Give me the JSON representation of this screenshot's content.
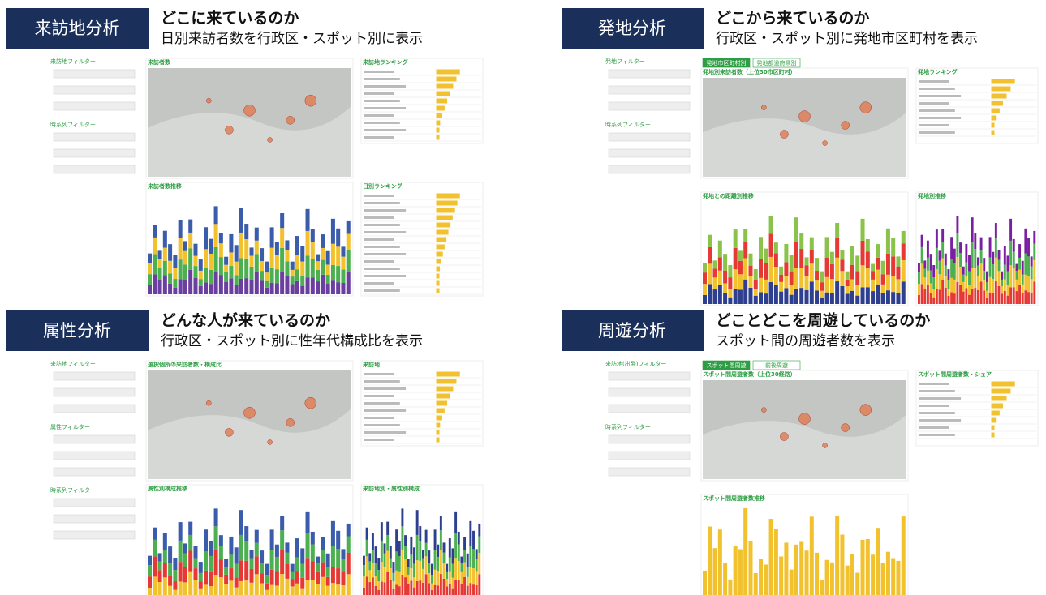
{
  "panels": [
    {
      "label": "来訪地分析",
      "title": "どこに来ているのか",
      "subtitle": "日別来訪者数を行政区・スポット別に表示",
      "filters": [
        "来訪地フィルター",
        "時系列フィルター"
      ],
      "widgets": [
        {
          "title": "来訪者数",
          "kind": "map"
        },
        {
          "title": "来訪地ランキング",
          "kind": "table"
        },
        {
          "title": "来訪者数推移",
          "kind": "stack",
          "colors": [
            "#6a3fa0",
            "#4caf50",
            "#f2c12e",
            "#3b5bab"
          ]
        },
        {
          "title": "日別ランキング",
          "kind": "table"
        }
      ]
    },
    {
      "label": "発地分析",
      "title": "どこから来ているのか",
      "subtitle": "行政区・スポット別に発地市区町村を表示",
      "filters": [
        "発地フィルター",
        "時系列フィルター"
      ],
      "tabs": [
        "発地市区町村別",
        "発地都道府県別"
      ],
      "widgets": [
        {
          "title": "発地別来訪者数（上位30市区町村）",
          "kind": "map"
        },
        {
          "title": "発地ランキング",
          "kind": "table"
        },
        {
          "title": "発地との距離別推移",
          "kind": "stack",
          "colors": [
            "#2e3f8f",
            "#f2c12e",
            "#e53935",
            "#8bc34a"
          ]
        },
        {
          "title": "発地別推移",
          "kind": "stack",
          "colors": [
            "#e53935",
            "#f2c12e",
            "#4caf50",
            "#7b1fa2"
          ]
        }
      ]
    },
    {
      "label": "属性分析",
      "title": "どんな人が来ているのか",
      "subtitle": "行政区・スポット別に性年代構成比を表示",
      "filters": [
        "来訪地フィルター",
        "属性フィルター",
        "時系列フィルター"
      ],
      "widgets": [
        {
          "title": "選択個所の来訪者数・構成比",
          "kind": "map"
        },
        {
          "title": "来訪地",
          "kind": "table"
        },
        {
          "title": "属性別構成推移",
          "kind": "stack",
          "colors": [
            "#f2c12e",
            "#e53935",
            "#4caf50",
            "#3b5bab"
          ]
        },
        {
          "title": "来訪地別・属性別構成",
          "kind": "stack",
          "colors": [
            "#e53935",
            "#f2c12e",
            "#4caf50",
            "#2e3f8f"
          ]
        }
      ]
    },
    {
      "label": "周遊分析",
      "title": "どことどこを周遊しているのか",
      "subtitle": "スポット間の周遊者数を表示",
      "filters": [
        "来訪地(出発)フィルター",
        "時系列フィルター"
      ],
      "tabs": [
        "スポット間周遊",
        "前後周遊"
      ],
      "widgets": [
        {
          "title": "スポット間周遊者数（上位30経路）",
          "kind": "map"
        },
        {
          "title": "スポット間周遊者数・シェア",
          "kind": "table"
        },
        {
          "title": "スポット間周遊者数推移",
          "kind": "stack",
          "colors": [
            "#f2c12e"
          ]
        }
      ]
    }
  ]
}
